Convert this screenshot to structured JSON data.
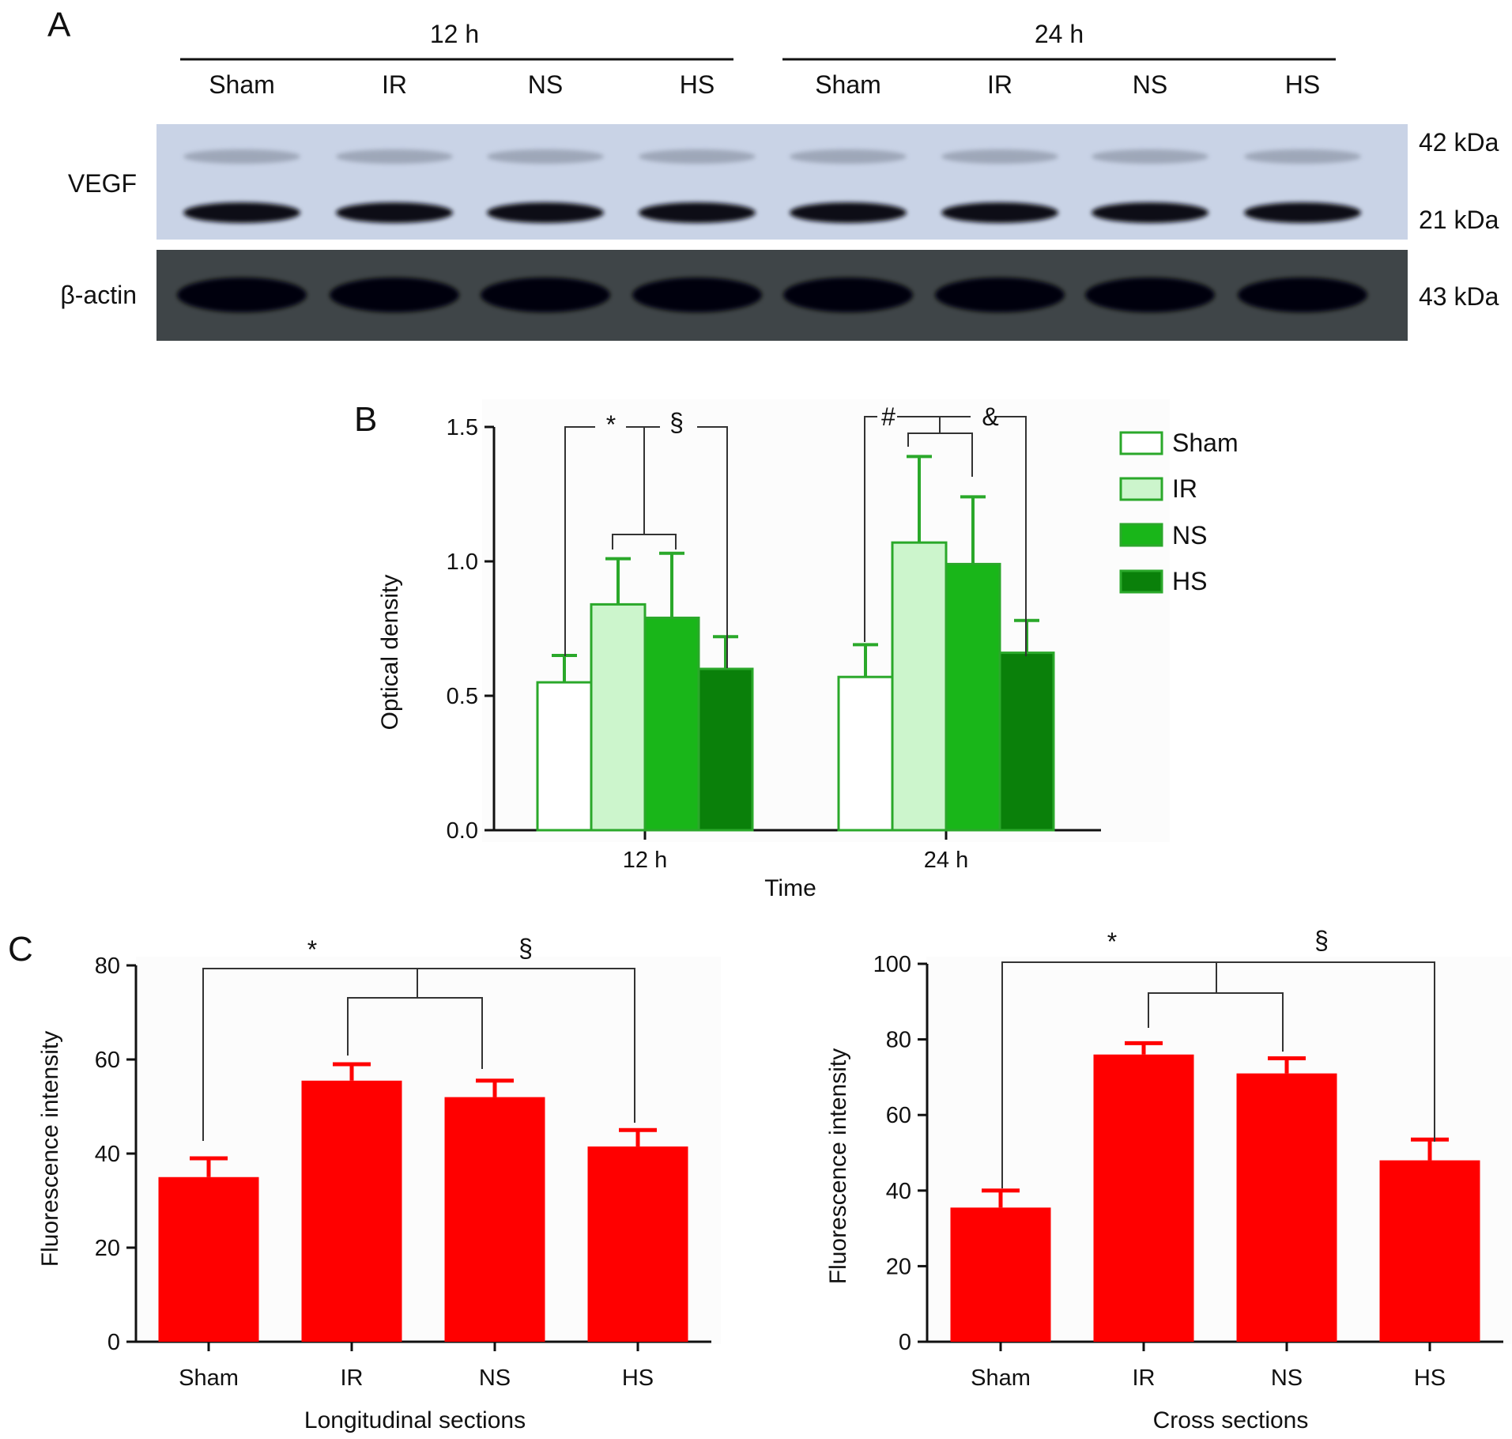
{
  "panels": {
    "a": "A",
    "b": "B",
    "c": "C"
  },
  "blot": {
    "time_groups": [
      "12 h",
      "24 h"
    ],
    "lanes": [
      "Sham",
      "IR",
      "NS",
      "HS",
      "Sham",
      "IR",
      "NS",
      "HS"
    ],
    "rows": [
      {
        "label": "VEGF",
        "markers": [
          "42 kDa",
          "21 kDa"
        ]
      },
      {
        "label": "β-actin",
        "markers": [
          "43 kDa"
        ]
      }
    ]
  },
  "colors": {
    "sham": "#ffffff",
    "ir": "#ccf5cc",
    "ns": "#19b619",
    "hs": "#0a800a",
    "green_edge": "#2aa82a",
    "red": "#ff0000",
    "blot_bg": "#c9d3e6",
    "actin_bg": "#3f4548"
  },
  "chart_data": [
    {
      "type": "bar",
      "panel": "B",
      "categories": [
        "12 h",
        "24 h"
      ],
      "series": [
        {
          "name": "Sham",
          "values": [
            0.55,
            0.57
          ],
          "errors": [
            0.1,
            0.12
          ]
        },
        {
          "name": "IR",
          "values": [
            0.84,
            1.07
          ],
          "errors": [
            0.17,
            0.32
          ]
        },
        {
          "name": "NS",
          "values": [
            0.79,
            0.99
          ],
          "errors": [
            0.24,
            0.25
          ]
        },
        {
          "name": "HS",
          "values": [
            0.6,
            0.66
          ],
          "errors": [
            0.12,
            0.12
          ]
        }
      ],
      "xlabel": "Time",
      "ylabel": "Optical density",
      "ylim": [
        0,
        1.5
      ],
      "yticks": [
        "0.0",
        "0.5",
        "1.0",
        "1.5"
      ],
      "legend_position": "right",
      "significance": [
        "*",
        "§",
        "#",
        "&"
      ]
    },
    {
      "type": "bar",
      "panel": "C-left",
      "categories": [
        "Sham",
        "IR",
        "NS",
        "HS"
      ],
      "values": [
        35,
        55.5,
        52,
        41.5
      ],
      "errors": [
        4,
        3.5,
        3.5,
        3.5
      ],
      "xlabel": "Longitudinal sections",
      "ylabel": "Fluorescence intensity",
      "ylim": [
        0,
        80
      ],
      "yticks": [
        "0",
        "20",
        "40",
        "60",
        "80"
      ],
      "significance": [
        "*",
        "§"
      ]
    },
    {
      "type": "bar",
      "panel": "C-right",
      "categories": [
        "Sham",
        "IR",
        "NS",
        "HS"
      ],
      "values": [
        35.5,
        76,
        71,
        48
      ],
      "errors": [
        4.5,
        3,
        4,
        5.5
      ],
      "xlabel": "Cross sections",
      "ylabel": "Fluorescence intensity",
      "ylim": [
        0,
        100
      ],
      "yticks": [
        "0",
        "20",
        "40",
        "60",
        "80",
        "100"
      ],
      "significance": [
        "*",
        "§"
      ]
    }
  ]
}
